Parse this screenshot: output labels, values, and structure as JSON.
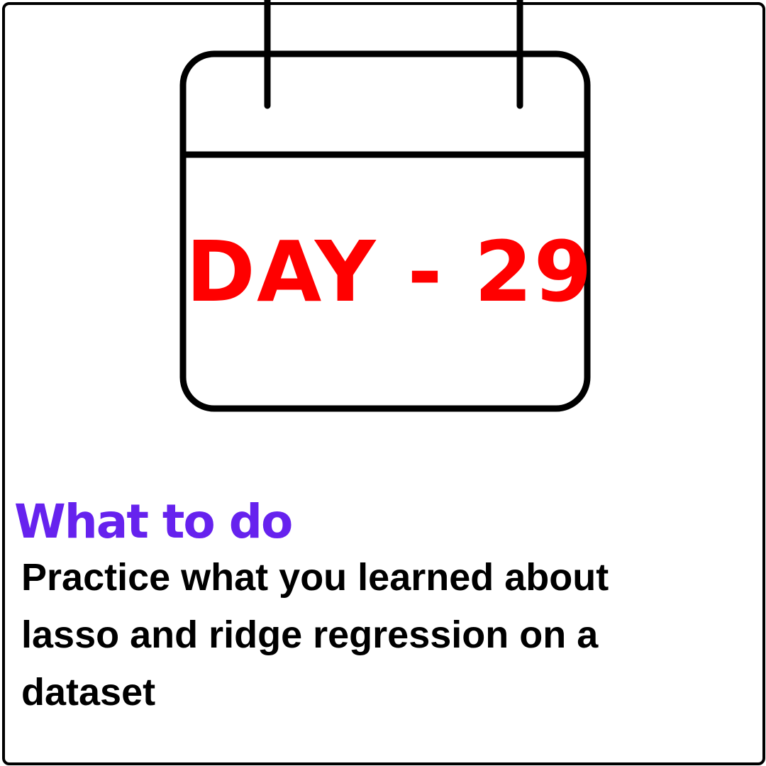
{
  "calendar": {
    "day_label": "DAY - 29"
  },
  "section": {
    "heading": "What to do",
    "description": "Practice what you learned about lasso and ridge regression on a dataset"
  },
  "colors": {
    "day_label": "#ff0000",
    "heading": "#6622ee",
    "text": "#000000",
    "outline": "#000000",
    "background": "#ffffff"
  },
  "icons": {
    "calendar": "calendar-icon"
  }
}
